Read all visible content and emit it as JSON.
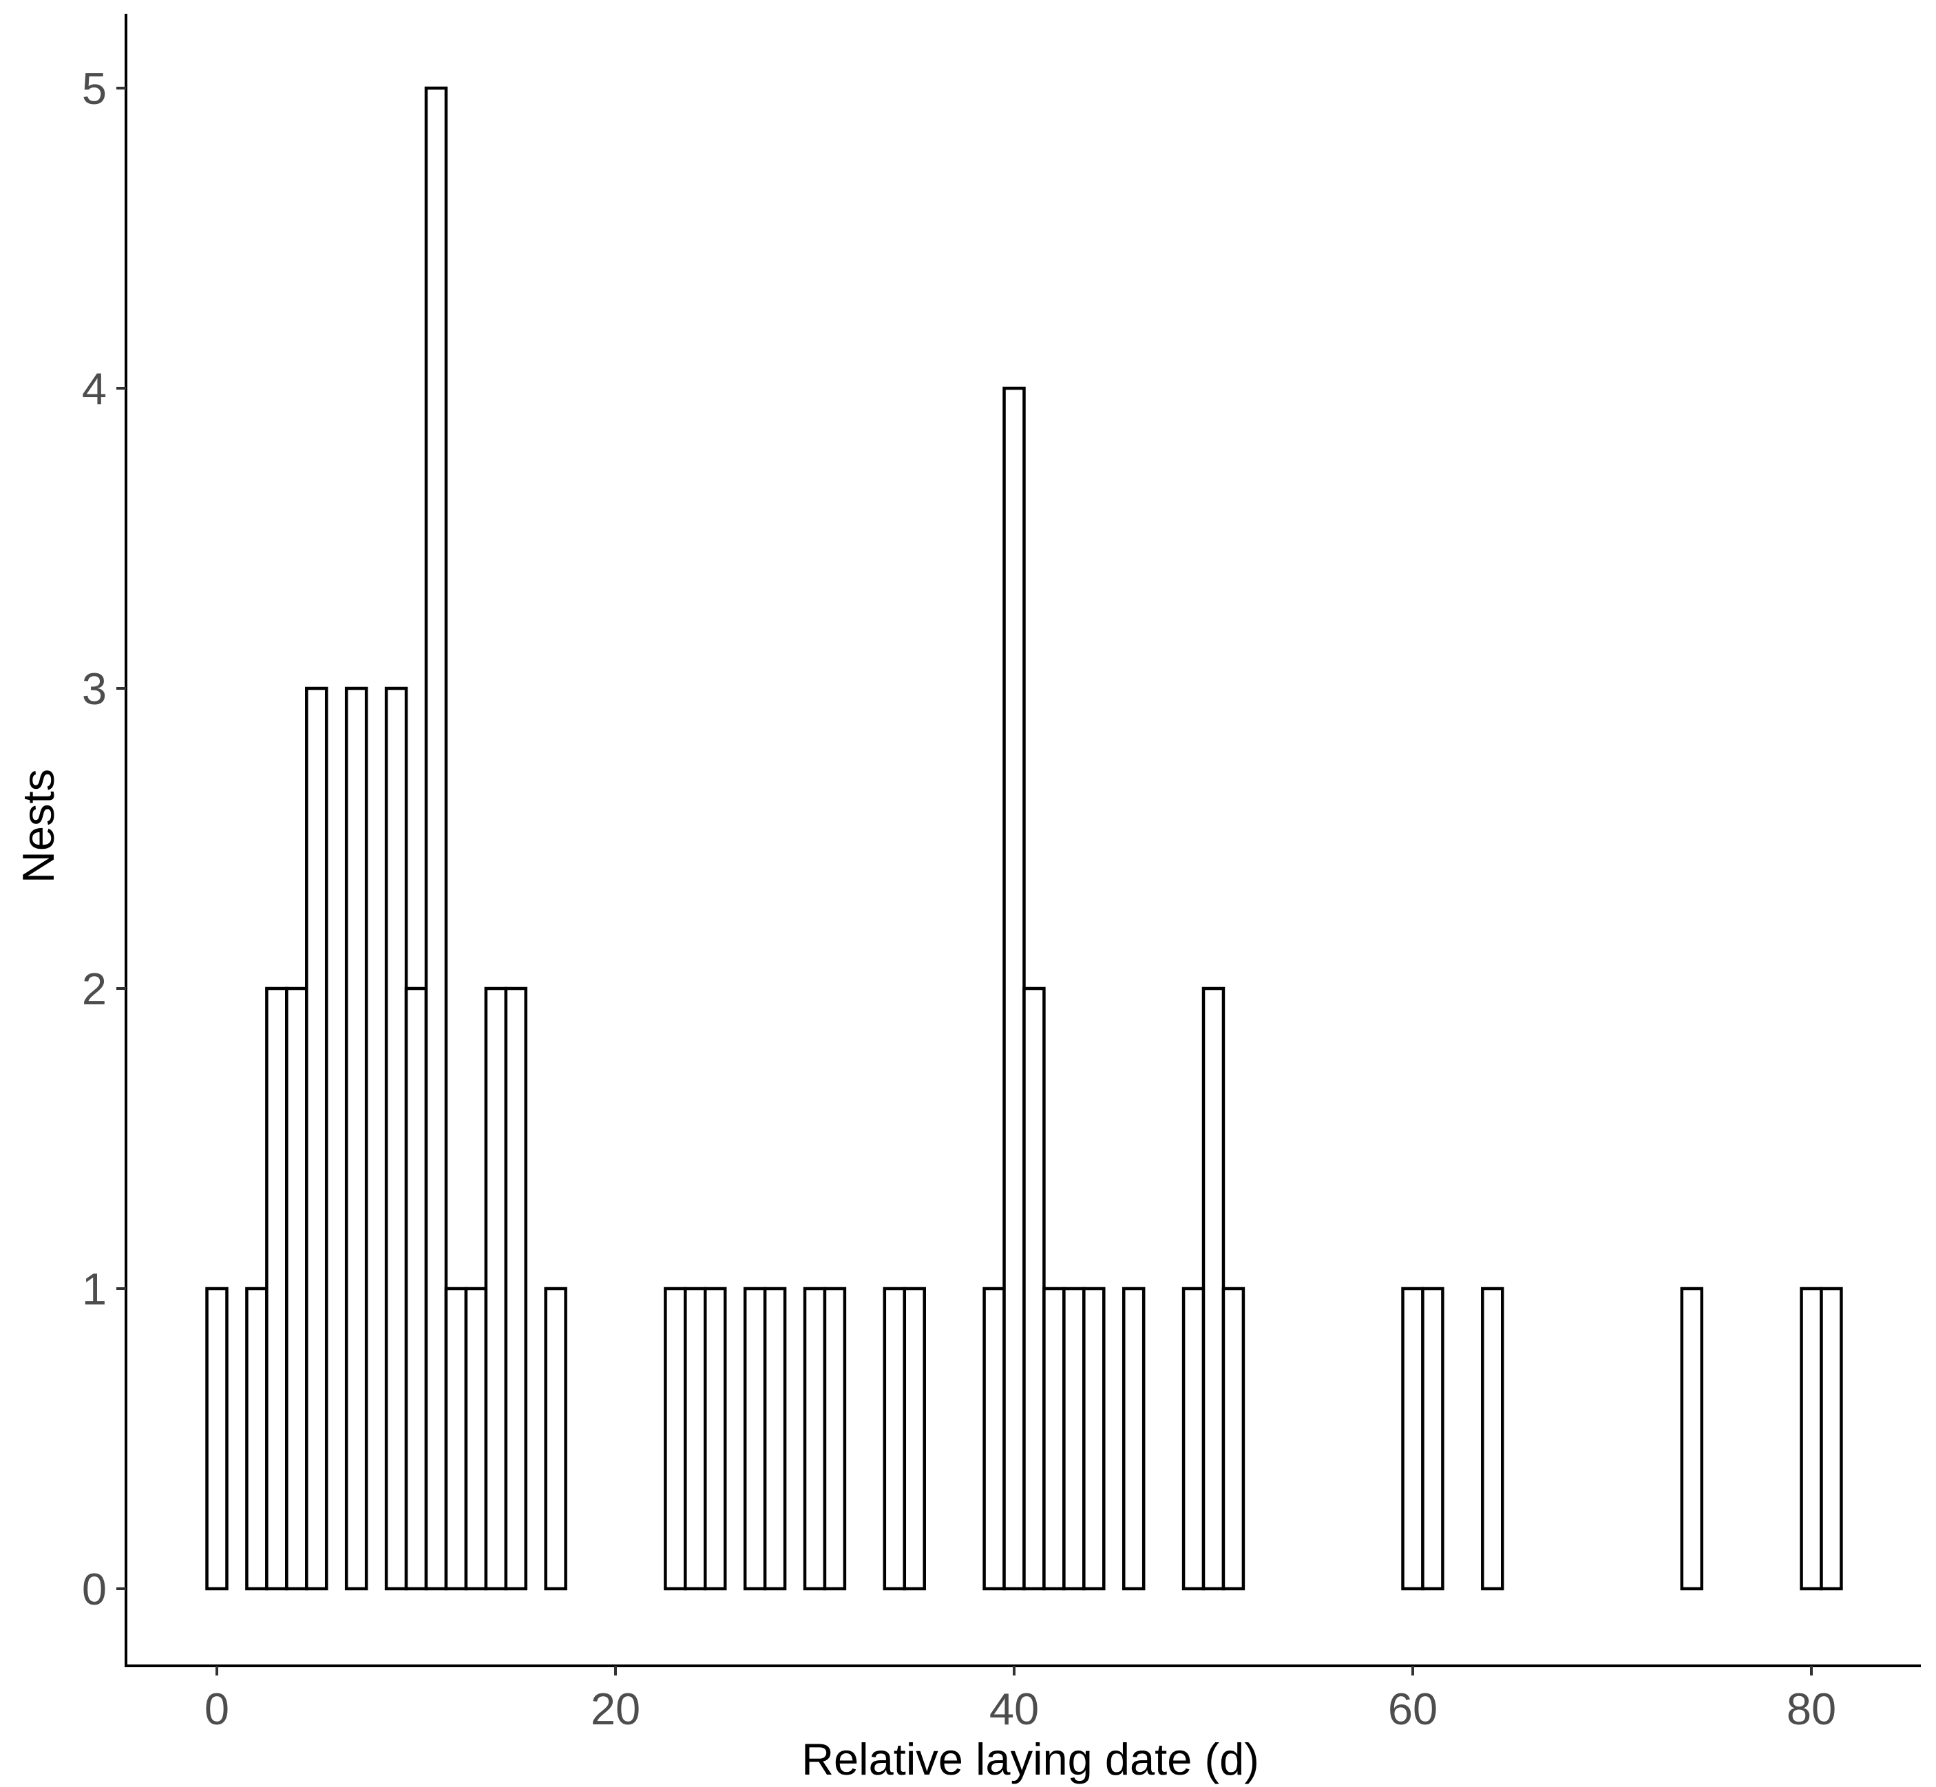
{
  "chart_data": {
    "type": "bar",
    "title": "",
    "xlabel": "Relative laying date (d)",
    "ylabel": "Nests",
    "xlim": [
      -4.5,
      85.5
    ],
    "ylim": [
      -0.25,
      5.25
    ],
    "bin_width": 1,
    "x_ticks": [
      0,
      20,
      40,
      60,
      80
    ],
    "y_ticks": [
      0,
      1,
      2,
      3,
      4,
      5
    ],
    "grid": false,
    "legend": "none",
    "colors": {
      "bar_fill": "#ffffff",
      "bar_stroke": "#000000"
    },
    "bins": [
      {
        "x": 0,
        "count": 1
      },
      {
        "x": 2,
        "count": 1
      },
      {
        "x": 3,
        "count": 2
      },
      {
        "x": 4,
        "count": 2
      },
      {
        "x": 5,
        "count": 3
      },
      {
        "x": 7,
        "count": 3
      },
      {
        "x": 9,
        "count": 3
      },
      {
        "x": 10,
        "count": 2
      },
      {
        "x": 11,
        "count": 5
      },
      {
        "x": 12,
        "count": 1
      },
      {
        "x": 13,
        "count": 1
      },
      {
        "x": 14,
        "count": 2
      },
      {
        "x": 15,
        "count": 2
      },
      {
        "x": 17,
        "count": 1
      },
      {
        "x": 23,
        "count": 1
      },
      {
        "x": 24,
        "count": 1
      },
      {
        "x": 25,
        "count": 1
      },
      {
        "x": 27,
        "count": 1
      },
      {
        "x": 28,
        "count": 1
      },
      {
        "x": 30,
        "count": 1
      },
      {
        "x": 31,
        "count": 1
      },
      {
        "x": 34,
        "count": 1
      },
      {
        "x": 35,
        "count": 1
      },
      {
        "x": 39,
        "count": 1
      },
      {
        "x": 40,
        "count": 4
      },
      {
        "x": 41,
        "count": 2
      },
      {
        "x": 42,
        "count": 1
      },
      {
        "x": 43,
        "count": 1
      },
      {
        "x": 44,
        "count": 1
      },
      {
        "x": 46,
        "count": 1
      },
      {
        "x": 49,
        "count": 1
      },
      {
        "x": 50,
        "count": 2
      },
      {
        "x": 51,
        "count": 1
      },
      {
        "x": 60,
        "count": 1
      },
      {
        "x": 61,
        "count": 1
      },
      {
        "x": 64,
        "count": 1
      },
      {
        "x": 74,
        "count": 1
      },
      {
        "x": 80,
        "count": 1
      },
      {
        "x": 81,
        "count": 1
      }
    ]
  }
}
